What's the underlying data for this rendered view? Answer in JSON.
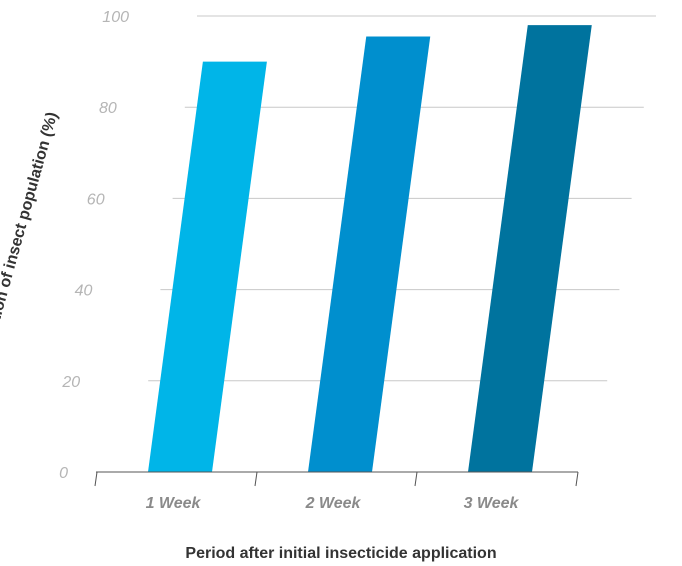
{
  "chart_data": {
    "type": "bar",
    "title": "",
    "xlabel": "Period after initial insecticide application",
    "ylabel": "Reduction of insect population (%)",
    "categories": [
      "1 Week",
      "2 Week",
      "3 Week"
    ],
    "values": [
      90,
      95.5,
      98
    ],
    "ylim": [
      0,
      100
    ],
    "yticks": [
      "0",
      "20",
      "40",
      "60",
      "80",
      "100"
    ],
    "grid": true,
    "legend": "none",
    "colors": [
      "#00b5e8",
      "#008fce",
      "#00739e"
    ]
  }
}
